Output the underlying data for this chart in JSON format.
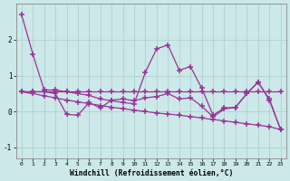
{
  "xlabel": "Windchill (Refroidissement éolien,°C)",
  "background_color": "#cce8e8",
  "grid_color": "#aacccc",
  "line_color": "#993399",
  "x_data": [
    0,
    1,
    2,
    3,
    4,
    5,
    6,
    7,
    8,
    9,
    10,
    11,
    12,
    13,
    14,
    15,
    16,
    17,
    18,
    19,
    20,
    21,
    22,
    23
  ],
  "series_main": [
    2.7,
    1.6,
    0.6,
    0.6,
    0.55,
    0.5,
    0.45,
    0.35,
    0.3,
    0.25,
    0.22,
    1.1,
    1.75,
    1.85,
    1.15,
    1.25,
    0.65,
    -0.1,
    0.1,
    0.12,
    0.5,
    0.82,
    0.35,
    -0.5
  ],
  "series_flat": [
    0.55,
    0.55,
    0.55,
    0.55,
    0.55,
    0.55,
    0.55,
    0.55,
    0.55,
    0.55,
    0.55,
    0.55,
    0.55,
    0.55,
    0.55,
    0.55,
    0.55,
    0.55,
    0.55,
    0.55,
    0.55,
    0.55,
    0.55,
    0.55
  ],
  "series_zigzag": [
    0.55,
    0.55,
    0.55,
    0.5,
    -0.08,
    -0.1,
    0.25,
    0.1,
    0.32,
    0.35,
    0.3,
    0.38,
    0.42,
    0.5,
    0.35,
    0.38,
    0.15,
    -0.15,
    0.07,
    0.12,
    0.5,
    0.82,
    0.32,
    -0.5
  ],
  "series_diagonal": [
    0.55,
    0.5,
    0.44,
    0.38,
    0.32,
    0.27,
    0.22,
    0.17,
    0.12,
    0.08,
    0.04,
    0.0,
    -0.04,
    -0.07,
    -0.1,
    -0.14,
    -0.18,
    -0.22,
    -0.26,
    -0.3,
    -0.34,
    -0.38,
    -0.42,
    -0.5
  ],
  "ylim": [
    -1.3,
    3.0
  ],
  "xlim": [
    -0.5,
    23.5
  ],
  "yticks": [
    -1,
    0,
    1,
    2
  ],
  "xticks": [
    0,
    1,
    2,
    3,
    4,
    5,
    6,
    7,
    8,
    9,
    10,
    11,
    12,
    13,
    14,
    15,
    16,
    17,
    18,
    19,
    20,
    21,
    22,
    23
  ]
}
